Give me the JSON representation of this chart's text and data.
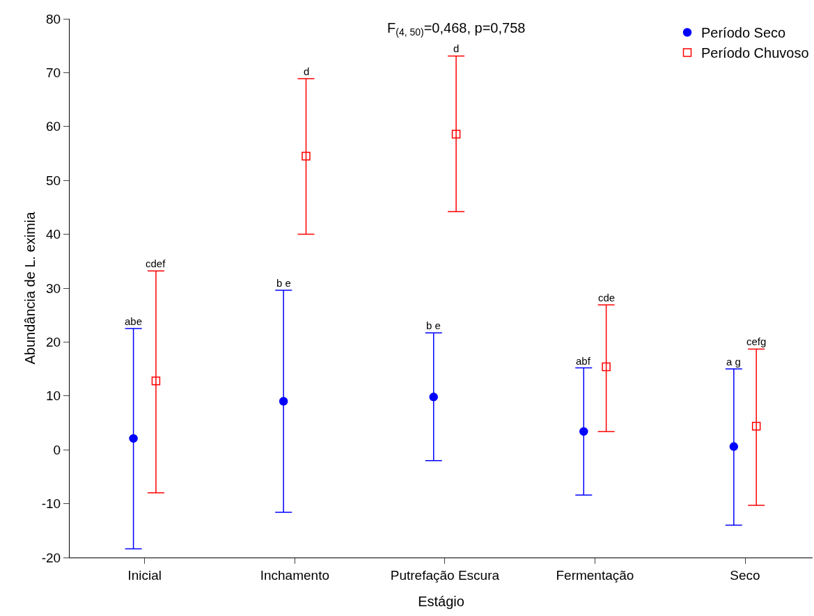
{
  "chart_data": {
    "type": "scatter",
    "title": "F$_{(4, 50)}$=0,468, p=0,758",
    "xlabel": "Estágio",
    "ylabel": "Abundância de L. eximia",
    "categories": [
      "Inicial",
      "Inchamento",
      "Putrefação Escura",
      "Fermentação",
      "Seco"
    ],
    "series": [
      {
        "name": "Período Seco",
        "color": "#0000ff",
        "marker": "circle",
        "values": [
          2.1,
          9.0,
          9.8,
          3.4,
          0.6
        ],
        "errors": [
          [
            -18.4,
            22.5
          ],
          [
            -11.6,
            29.6
          ],
          [
            -2.0,
            21.7
          ],
          [
            -8.4,
            15.2
          ],
          [
            -14.0,
            15.0
          ]
        ]
      },
      {
        "name": "Período Chuvoso",
        "color": "#ff0000",
        "marker": "square",
        "values": [
          12.8,
          54.5,
          58.6,
          15.4,
          4.4
        ],
        "errors": [
          [
            -8.0,
            33.2
          ],
          [
            40.0,
            68.9
          ],
          [
            44.2,
            73.1
          ],
          [
            3.4,
            26.9
          ],
          [
            -10.3,
            18.7
          ]
        ]
      }
    ],
    "annotations": [
      {
        "text": "abe",
        "x": "Inicial",
        "y": 22.5
      },
      {
        "text": "b e",
        "x": "Inchamento",
        "y": 29.6
      },
      {
        "text": "b e",
        "x": "Putrefação Escura",
        "y": 21.7
      },
      {
        "text": "abf",
        "x": "Fermentação",
        "y": 15.2
      },
      {
        "text": "a g",
        "x": "Seco",
        "y": 15.0
      },
      {
        "text": "cdef",
        "x": "Inicial",
        "y": 33.2
      },
      {
        "text": "d",
        "x": "Inchamento",
        "y": 68.9
      },
      {
        "text": "d",
        "x": "Putrefação Escura",
        "y": 73.1
      },
      {
        "text": "cde",
        "x": "Fermentação",
        "y": 26.9
      },
      {
        "text": "cefg",
        "x": "Seco",
        "y": 18.7
      }
    ],
    "ylim": [
      -20,
      80
    ],
    "yticks": [
      -20,
      -10,
      0,
      10,
      20,
      30,
      40,
      50,
      60,
      70,
      80
    ],
    "grid": false,
    "legend": "top right"
  }
}
